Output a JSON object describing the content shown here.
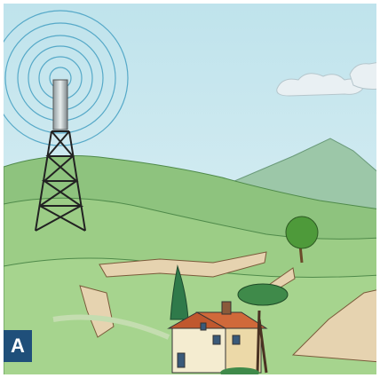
{
  "label": "A"
}
